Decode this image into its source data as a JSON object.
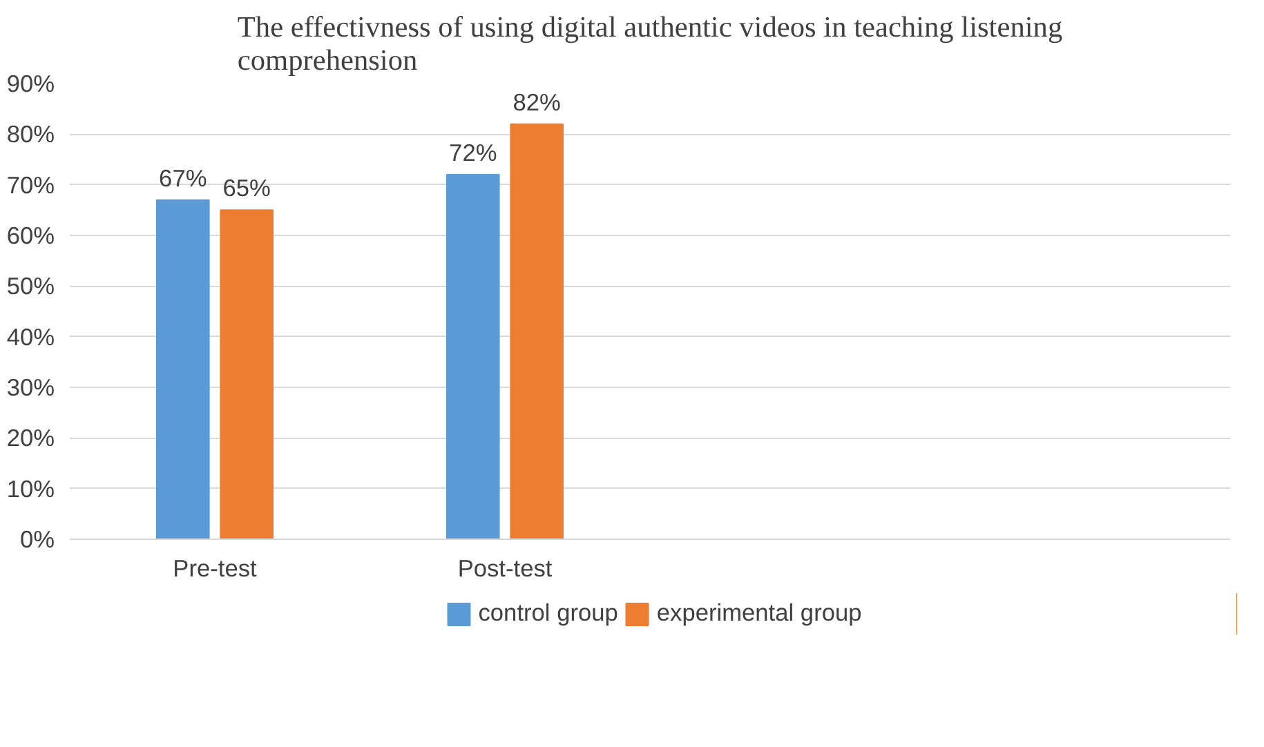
{
  "chart_data": {
    "type": "bar",
    "title": "The effectivness of using digital authentic videos in teaching listening comprehension",
    "categories": [
      "Pre-test",
      "Post-test",
      null,
      null
    ],
    "series": [
      {
        "name": "control group",
        "color": "#5b9bd5",
        "values": [
          67,
          72,
          null,
          null
        ],
        "value_labels": [
          "67%",
          "72%",
          null,
          null
        ]
      },
      {
        "name": "experimental group",
        "color": "#ed7d31",
        "values": [
          65,
          82,
          null,
          null
        ],
        "value_labels": [
          "65%",
          "82%",
          null,
          null
        ]
      }
    ],
    "ylim": [
      0,
      90
    ],
    "yticks": [
      {
        "value": 0,
        "label": "0%"
      },
      {
        "value": 10,
        "label": "10%"
      },
      {
        "value": 20,
        "label": "20%"
      },
      {
        "value": 30,
        "label": "30%"
      },
      {
        "value": 40,
        "label": "40%"
      },
      {
        "value": 50,
        "label": "50%"
      },
      {
        "value": 60,
        "label": "60%"
      },
      {
        "value": 70,
        "label": "70%"
      },
      {
        "value": 80,
        "label": "80%"
      },
      {
        "value": 90,
        "label": "90%"
      }
    ],
    "grid": "y",
    "legend": "bottom"
  }
}
